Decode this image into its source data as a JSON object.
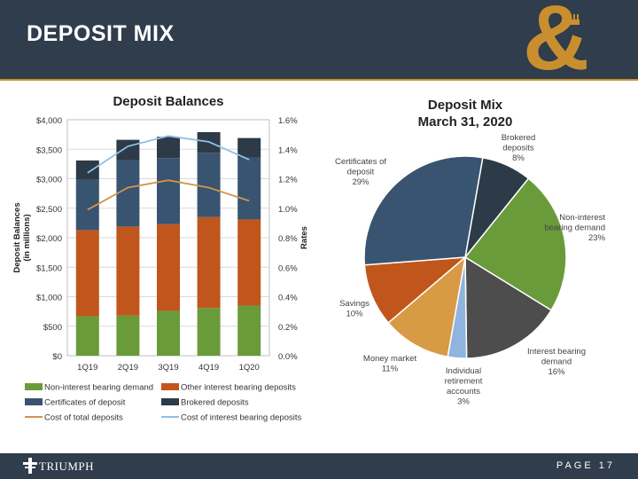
{
  "header": {
    "title": "DEPOSIT MIX",
    "logo_icon": "ampersand-plug-logo"
  },
  "colors": {
    "header_bg": "#2f3d4c",
    "accent": "#c98f2e",
    "non_interest_bearing": "#6a9b3b",
    "other_interest_bearing": "#c0561c",
    "certificates": "#385470",
    "brokered": "#2d3a47",
    "interest_bearing_demand": "#4d4d4d",
    "ira": "#8fb4dd",
    "money_market": "#d89a45",
    "cost_total": "#d3944a",
    "cost_interest": "#8ec0e6"
  },
  "chart_data": [
    {
      "type": "bar",
      "stacked": true,
      "title": "Deposit Balances",
      "categories": [
        "1Q19",
        "2Q19",
        "3Q19",
        "4Q19",
        "1Q20"
      ],
      "series": [
        {
          "name": "Non-interest bearing demand",
          "axis": "left",
          "values": [
            670,
            680,
            760,
            810,
            850
          ]
        },
        {
          "name": "Other interest bearing deposits",
          "axis": "left",
          "values": [
            1460,
            1510,
            1470,
            1540,
            1460
          ]
        },
        {
          "name": "Certificates of deposit",
          "axis": "left",
          "values": [
            850,
            1120,
            1120,
            1090,
            1050
          ]
        },
        {
          "name": "Brokered deposits",
          "axis": "left",
          "values": [
            330,
            350,
            360,
            350,
            330
          ]
        },
        {
          "name": "Cost of total deposits",
          "type": "line",
          "axis": "right",
          "values": [
            0.0099,
            0.0114,
            0.0119,
            0.0114,
            0.0105
          ]
        },
        {
          "name": "Cost of interest bearing deposits",
          "type": "line",
          "axis": "right",
          "values": [
            0.0124,
            0.0142,
            0.0149,
            0.0145,
            0.0133
          ]
        }
      ],
      "ylabel": "Deposit Balances\n(in millions)",
      "ylabel_lines": [
        "Deposit Balances",
        "(in millions)"
      ],
      "y2label": "Rates",
      "ylim": [
        0,
        4000
      ],
      "y2lim": [
        0,
        0.016
      ],
      "yticks": [
        "$0",
        "$500",
        "$1,000",
        "$1,500",
        "$2,000",
        "$2,500",
        "$3,000",
        "$3,500",
        "$4,000"
      ],
      "y2ticks": [
        "0.0%",
        "0.2%",
        "0.4%",
        "0.6%",
        "0.8%",
        "1.0%",
        "1.2%",
        "1.4%",
        "1.6%"
      ],
      "grid": true,
      "legend": "bottom",
      "legend_order": [
        "Non-interest bearing demand",
        "Other interest bearing deposits",
        "Certificates of deposit",
        "Brokered deposits",
        "Cost of total deposits",
        "Cost of interest bearing deposits"
      ]
    },
    {
      "type": "pie",
      "title": "Deposit Mix",
      "subtitle": "March 31, 2020",
      "slices": [
        {
          "label": "Brokered deposits",
          "label_lines": [
            "Brokered",
            "deposits"
          ],
          "value": 8,
          "pct": "8%"
        },
        {
          "label": "Non-interest bearing demand",
          "label_lines": [
            "Non-interest",
            "bearing demand"
          ],
          "value": 23,
          "pct": "23%"
        },
        {
          "label": "Interest bearing demand",
          "label_lines": [
            "Interest bearing",
            "demand"
          ],
          "value": 16,
          "pct": "16%"
        },
        {
          "label": "Individual retirement accounts",
          "label_lines": [
            "Individual",
            "retirement",
            "accounts"
          ],
          "value": 3,
          "pct": "3%"
        },
        {
          "label": "Money market",
          "label_lines": [
            "Money market"
          ],
          "value": 11,
          "pct": "11%"
        },
        {
          "label": "Savings",
          "label_lines": [
            "Savings"
          ],
          "value": 10,
          "pct": "10%"
        },
        {
          "label": "Certificates of deposit",
          "label_lines": [
            "Certificates of",
            "deposit"
          ],
          "value": 29,
          "pct": "29%"
        }
      ]
    }
  ],
  "footer": {
    "brand": "TRIUMPH",
    "brand_icon": "triumph-cross-icon",
    "page_label": "PAGE",
    "page_number": "17"
  }
}
